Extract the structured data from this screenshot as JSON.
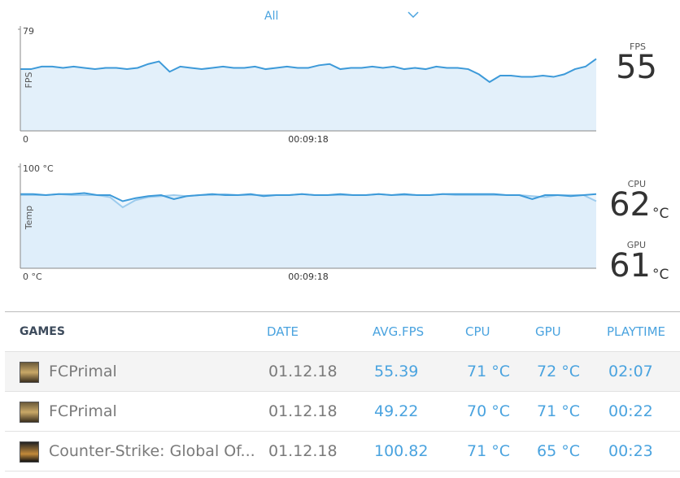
{
  "header": {
    "filter": "All"
  },
  "chart_data": [
    {
      "type": "line",
      "ylabel": "FPS",
      "x_label": "00:09:18",
      "ylim": [
        0,
        79
      ],
      "yticks": [
        0,
        79
      ],
      "series": [
        {
          "name": "FPS",
          "color": "#3d9ad9",
          "values": [
            48,
            48,
            50,
            50,
            49,
            50,
            49,
            48,
            49,
            49,
            48,
            49,
            52,
            54,
            46,
            50,
            49,
            48,
            49,
            50,
            49,
            49,
            50,
            48,
            49,
            50,
            49,
            49,
            51,
            52,
            48,
            49,
            49,
            50,
            49,
            50,
            48,
            49,
            48,
            50,
            49,
            49,
            48,
            44,
            38,
            43,
            43,
            42,
            42,
            43,
            42,
            44,
            48,
            50,
            56
          ]
        }
      ],
      "readouts": [
        {
          "label": "FPS",
          "value": 55
        }
      ]
    },
    {
      "type": "line",
      "ylabel": "Temp",
      "x_label": "00:09:18",
      "ylim": [
        0,
        100
      ],
      "yticks": [
        {
          "value": 0,
          "label": "0 °C"
        },
        {
          "value": 100,
          "label": "100 °C"
        }
      ],
      "series": [
        {
          "name": "GPU",
          "color": "#9ccbed",
          "values": [
            72,
            72,
            72,
            73,
            72,
            72,
            72,
            70,
            60,
            67,
            70,
            71,
            72,
            71,
            72,
            72,
            73,
            72,
            72,
            72,
            72,
            72,
            73,
            72,
            72,
            72,
            72,
            72,
            73,
            72,
            72,
            72,
            72,
            73,
            72,
            72,
            72,
            72,
            72,
            72,
            71,
            70,
            72,
            72,
            72,
            66
          ]
        },
        {
          "name": "CPU",
          "color": "#3d9ad9",
          "values": [
            73,
            73,
            72,
            73,
            73,
            74,
            72,
            72,
            66,
            69,
            71,
            72,
            68,
            71,
            72,
            73,
            72,
            72,
            73,
            71,
            72,
            72,
            73,
            72,
            72,
            73,
            72,
            72,
            73,
            72,
            73,
            72,
            72,
            73,
            73,
            73,
            73,
            73,
            72,
            72,
            68,
            72,
            72,
            71,
            72,
            73
          ]
        }
      ],
      "readouts": [
        {
          "label": "CPU",
          "value": 62,
          "unit": "°C"
        },
        {
          "label": "GPU",
          "value": 61,
          "unit": "°C"
        }
      ]
    }
  ],
  "table": {
    "columns": [
      "GAMES",
      "DATE",
      "AVG.FPS",
      "CPU",
      "GPU",
      "PLAYTIME"
    ],
    "rows": [
      [
        "FCPrimal",
        "01.12.18",
        "55.39",
        "71 °C",
        "72 °C",
        "02:07"
      ],
      [
        "FCPrimal",
        "01.12.18",
        "49.22",
        "70 °C",
        "71 °C",
        "00:22"
      ],
      [
        "Counter-Strike: Global Of...",
        "01.12.18",
        "100.82",
        "71 °C",
        "65 °C",
        "00:23"
      ]
    ]
  }
}
